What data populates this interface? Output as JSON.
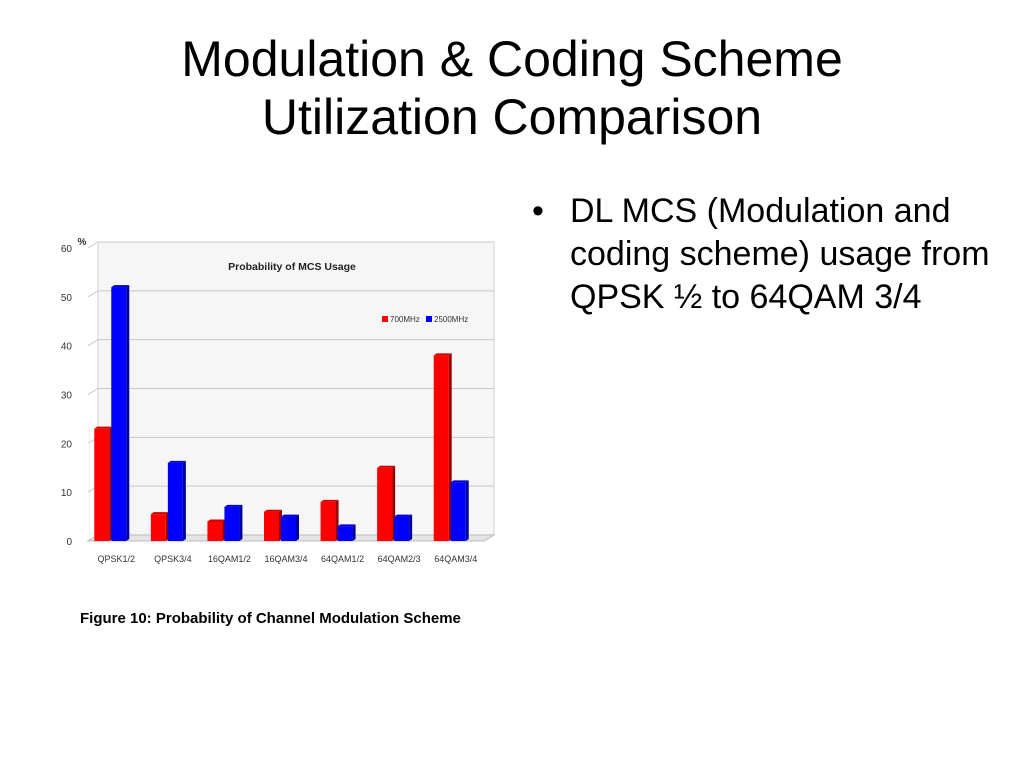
{
  "slide": {
    "title_line1": "Modulation & Coding Scheme",
    "title_line2": "Utilization Comparison",
    "bullet_char": "•",
    "bullet": "DL MCS (Modulation and coding scheme) usage from QPSK ½ to 64QAM 3/4",
    "caption": "Figure 10: Probability of Channel Modulation Scheme"
  },
  "chart_data": {
    "type": "bar",
    "title": "Probability of MCS Usage",
    "ylabel": "%",
    "xlabel": "",
    "ylim": [
      0,
      60
    ],
    "yticks": [
      0,
      10,
      20,
      30,
      40,
      50,
      60
    ],
    "grid": true,
    "legend_position": "top-right",
    "categories": [
      "QPSK1/2",
      "QPSK3/4",
      "16QAM1/2",
      "16QAM3/4",
      "64QAM1/2",
      "64QAM2/3",
      "64QAM3/4"
    ],
    "series": [
      {
        "name": "700MHz",
        "color": "#ff0000",
        "values": [
          23,
          5.5,
          4,
          6,
          8,
          15,
          38
        ]
      },
      {
        "name": "2500MHz",
        "color": "#0000ff",
        "values": [
          52,
          16,
          7,
          5,
          3,
          5,
          12
        ]
      }
    ]
  }
}
